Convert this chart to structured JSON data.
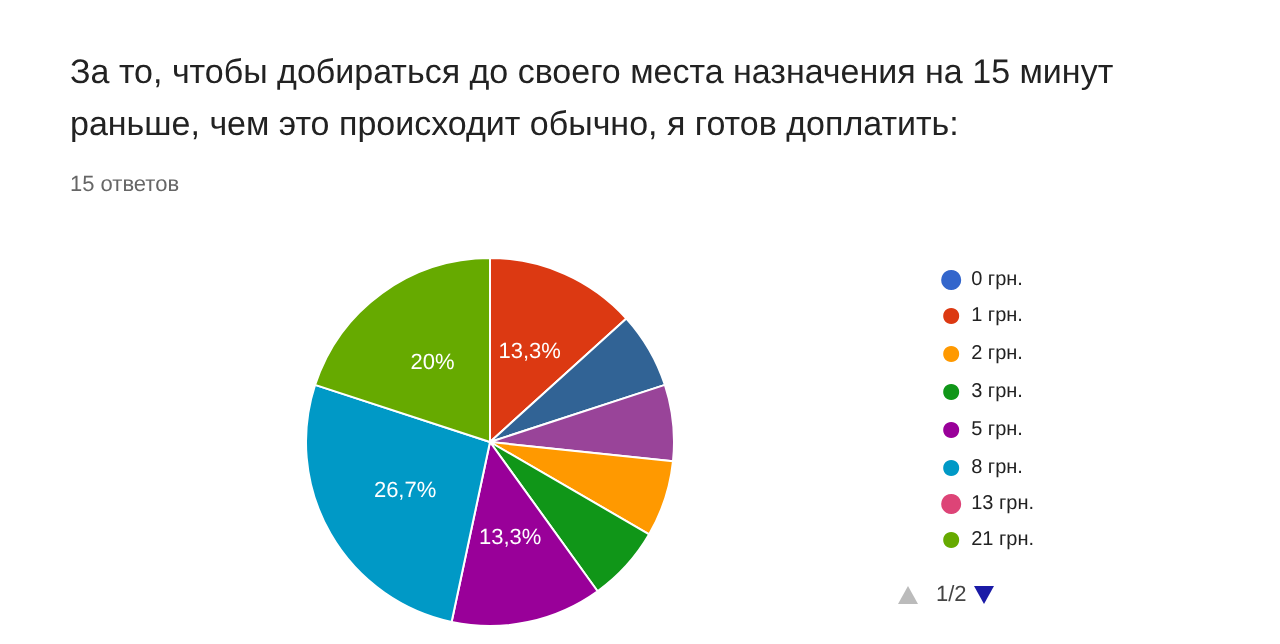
{
  "chart_data": {
    "type": "pie",
    "title": "За то, чтобы добираться до своего места назначения на 15 минут раньше, чем это происходит обычно, я готов доплатить:",
    "subtitle": "15 ответов",
    "categories": [
      "0 грн.",
      "1 грн.",
      null,
      null,
      "2 грн.",
      "3 грн.",
      "5 грн.",
      "8 грн.",
      "13 грн.",
      "21 грн."
    ],
    "values": [
      0,
      13.3,
      6.7,
      6.7,
      6.7,
      6.7,
      13.3,
      26.7,
      0,
      20
    ],
    "colors": [
      "#3366cc",
      "#dc3912",
      "#316395",
      "#994499",
      "#ff9900",
      "#109618",
      "#990099",
      "#0099c6",
      "#dd4477",
      "#66aa00"
    ],
    "value_labels": [
      null,
      "13,3%",
      null,
      null,
      null,
      null,
      "13,3%",
      "26,7%",
      null,
      "20%"
    ],
    "legend": "right",
    "annotations": [
      "1/2"
    ]
  }
}
